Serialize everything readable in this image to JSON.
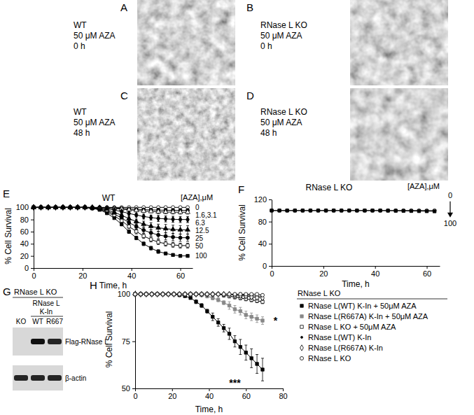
{
  "chart_data": [
    {
      "panel_label": "E",
      "type": "line",
      "title": "WT",
      "x_label": "Time, h",
      "y_label": "% Cell Survival",
      "x": [
        0,
        3,
        6,
        9,
        12,
        15,
        18,
        21,
        24,
        27,
        30,
        33,
        36,
        39,
        42,
        45,
        48,
        51,
        54,
        57,
        60,
        63
      ],
      "xlim": [
        0,
        65
      ],
      "xticks": [
        0,
        20,
        40,
        60
      ],
      "ylim": [
        0,
        105
      ],
      "yticks": [
        0,
        20,
        40,
        60,
        80,
        100
      ],
      "curve_labels_title": "[AZA],μM",
      "curve_labels": [
        {
          "text": "0",
          "series": [
            0
          ]
        },
        {
          "text": "1.6,3.1",
          "series": [
            1,
            2
          ]
        },
        {
          "text": "6.3",
          "series": [
            3
          ]
        },
        {
          "text": "12.5",
          "series": [
            4
          ]
        },
        {
          "text": "25",
          "series": [
            5
          ]
        },
        {
          "text": "50",
          "series": [
            6
          ]
        },
        {
          "text": "100",
          "series": [
            7
          ]
        }
      ],
      "series": [
        {
          "color": "#000000",
          "marker": "circle-open",
          "values": [
            100,
            100,
            100,
            100,
            100,
            100,
            100,
            100,
            100,
            100,
            100,
            100,
            100,
            100,
            100,
            100,
            100,
            100,
            100,
            100,
            100,
            100
          ],
          "errors": [
            0,
            0,
            0,
            0,
            0,
            0,
            0,
            0,
            0,
            0,
            0,
            0,
            0,
            0,
            0,
            0,
            0,
            0,
            0,
            0,
            1,
            1
          ]
        },
        {
          "color": "#000000",
          "marker": "circle",
          "values": [
            100,
            100,
            100,
            100,
            100,
            100,
            100,
            100,
            99.9,
            99.8,
            99.4,
            98.9,
            98.3,
            97.5,
            96.9,
            96.3,
            95.8,
            95.5,
            95.3,
            95.1,
            95,
            95
          ],
          "errors": [
            0,
            0,
            0,
            0,
            0,
            0,
            0,
            0,
            0,
            0,
            0,
            0,
            1,
            1,
            2,
            2,
            2,
            3,
            3,
            3,
            3,
            3
          ]
        },
        {
          "color": "#000000",
          "marker": "triangle-open",
          "values": [
            100,
            100,
            100,
            100,
            100,
            100,
            100,
            100,
            99.8,
            99.6,
            99,
            98.2,
            97.2,
            96,
            95,
            94,
            93.3,
            92.7,
            92.4,
            92.2,
            92,
            92
          ],
          "errors": [
            0,
            0,
            0,
            0,
            0,
            0,
            0,
            0,
            0,
            0,
            0,
            0,
            1,
            1,
            2,
            2,
            2,
            3,
            3,
            3,
            3,
            3
          ]
        },
        {
          "color": "#000000",
          "marker": "diamond",
          "values": [
            100,
            100,
            100,
            100,
            100,
            100,
            100,
            100,
            99.6,
            99,
            97.6,
            95.6,
            93,
            90,
            87.4,
            85,
            83.2,
            81.8,
            81,
            80.4,
            80,
            80
          ],
          "errors": [
            0,
            0,
            0,
            0,
            0,
            0,
            0,
            0,
            0,
            0,
            0,
            0,
            2,
            3,
            3,
            4,
            4,
            5,
            5,
            5,
            5,
            5
          ]
        },
        {
          "color": "#000000",
          "marker": "triangle",
          "values": [
            100,
            100,
            100,
            100,
            100,
            100,
            100,
            100,
            99.3,
            98.2,
            95.6,
            91.9,
            87,
            81.5,
            76.7,
            72.3,
            68.9,
            66.3,
            64.9,
            63.7,
            63,
            63
          ],
          "errors": [
            0,
            0,
            0,
            0,
            0,
            0,
            0,
            0,
            0,
            0,
            0,
            0,
            2,
            3,
            4,
            5,
            6,
            6,
            7,
            7,
            7,
            7
          ]
        },
        {
          "color": "#000000",
          "marker": "circle",
          "values": [
            100,
            100,
            100,
            100,
            100,
            100,
            100,
            100,
            99,
            97.5,
            94,
            89,
            82.5,
            75,
            68.5,
            62.5,
            58,
            54.5,
            52.5,
            51,
            50,
            50
          ],
          "errors": [
            0,
            0,
            0,
            0,
            0,
            0,
            0,
            0,
            0,
            0,
            0,
            0,
            2,
            3,
            4,
            5,
            5,
            6,
            6,
            6,
            6,
            6
          ]
        },
        {
          "color": "#000000",
          "marker": "square-open",
          "values": [
            100,
            100,
            100,
            100,
            100,
            100,
            100,
            100,
            98.7,
            96.9,
            92.4,
            86.1,
            78,
            68.5,
            60.3,
            52.8,
            47.1,
            42.7,
            40.2,
            38.3,
            37,
            37
          ],
          "errors": [
            0,
            0,
            0,
            0,
            0,
            0,
            0,
            0,
            0,
            0,
            0,
            0,
            2,
            3,
            4,
            4,
            4,
            4,
            4,
            4,
            4,
            4
          ]
        },
        {
          "color": "#000000",
          "marker": "square",
          "values": [
            100,
            100,
            100,
            100,
            100,
            100,
            100,
            100,
            98.4,
            96,
            90.4,
            82.4,
            72,
            60,
            49.6,
            40,
            32.8,
            27.2,
            24,
            21.6,
            20,
            20
          ],
          "errors": [
            0,
            0,
            0,
            0,
            0,
            0,
            0,
            0,
            0,
            0,
            0,
            0,
            2,
            3,
            3,
            3,
            3,
            3,
            2,
            2,
            2,
            2
          ]
        }
      ]
    },
    {
      "panel_label": "F",
      "type": "line",
      "title": "RNase L KO",
      "x_label": "Time, h",
      "y_label": "% Cell Survival",
      "x": [
        0,
        3,
        6,
        9,
        12,
        15,
        18,
        21,
        24,
        27,
        30,
        33,
        36,
        39,
        42,
        45,
        48,
        51,
        54,
        57,
        60,
        63
      ],
      "xlim": [
        0,
        65
      ],
      "xticks": [
        0,
        20,
        40,
        60
      ],
      "ylim": [
        0,
        120
      ],
      "yticks": [
        0,
        40,
        80,
        120
      ],
      "curve_labels_title": "[AZA],μM",
      "curve_labels": [
        {
          "text": "0",
          "series": [
            0
          ]
        },
        {
          "text": "100",
          "series": [
            1
          ]
        }
      ],
      "series": [
        {
          "color": "#000000",
          "marker": "circle-open",
          "values": [
            100,
            100,
            100,
            100,
            100,
            100,
            100,
            100,
            100,
            100,
            100,
            100,
            100,
            100,
            100,
            100,
            100,
            100,
            100,
            100,
            100,
            100
          ]
        },
        {
          "color": "#000000",
          "marker": "square",
          "values": [
            100,
            100,
            100,
            100,
            100,
            100,
            100,
            100,
            100,
            100,
            100,
            100,
            100,
            100,
            100,
            99.8,
            99.6,
            99.4,
            99.2,
            99,
            98.8,
            98.6
          ]
        }
      ]
    },
    {
      "panel_label": "H",
      "type": "line",
      "x_label": "Time, h",
      "y_label": "% Cell Survival",
      "x": [
        0,
        3,
        6,
        9,
        12,
        15,
        18,
        21,
        24,
        27,
        30,
        33,
        36,
        39,
        42,
        45,
        48,
        51,
        54,
        57,
        60,
        63,
        66,
        69
      ],
      "xlim": [
        0,
        80
      ],
      "xticks": [
        0,
        20,
        40,
        60,
        80
      ],
      "ylim": [
        50,
        102
      ],
      "yticks": [
        50,
        75,
        100
      ],
      "legend": "right",
      "legend_title": "RNase L KO",
      "annotations": [
        {
          "text": "*",
          "x": 76,
          "y": 86
        },
        {
          "text": "***",
          "x": 54,
          "y": 53
        }
      ],
      "series": [
        {
          "name": "RNase L(WT) K-In + 50μM AZA",
          "color": "#000000",
          "marker": "square",
          "values": [
            100,
            100,
            100,
            100,
            100,
            100,
            100,
            100,
            99.5,
            99,
            98,
            96,
            94,
            91,
            88,
            85,
            82,
            79,
            75,
            72,
            69,
            66,
            63,
            60
          ],
          "errors": [
            0,
            0,
            0,
            0,
            0,
            0,
            0,
            0,
            0,
            0,
            0,
            1,
            1,
            1,
            2,
            2,
            2,
            3,
            3,
            4,
            4,
            5,
            5,
            6
          ]
        },
        {
          "name": "RNase L(R667A) K-In + 50μM AZA",
          "color": "#888888",
          "marker": "square",
          "values": [
            100,
            100,
            100,
            100,
            100,
            100,
            100,
            100,
            100,
            100,
            100,
            100,
            99.5,
            99,
            98,
            97,
            95.5,
            94,
            92,
            91,
            89,
            88,
            87,
            86
          ],
          "errors": [
            0,
            0,
            0,
            0,
            0,
            0,
            0,
            0,
            0,
            0,
            0,
            0,
            0,
            1,
            1,
            1,
            1,
            2,
            2,
            2,
            2,
            2,
            2,
            2
          ]
        },
        {
          "name": "RNase L KO + 50μM AZA",
          "color": "#000000",
          "marker": "square-open",
          "values": [
            100,
            100,
            100,
            100,
            100,
            100,
            100,
            100,
            100,
            100,
            100,
            100,
            100,
            100,
            100,
            100,
            99.5,
            99,
            98.5,
            98,
            97.5,
            97,
            96.5,
            96
          ],
          "errors": [
            0,
            0,
            0,
            0,
            0,
            0,
            0,
            0,
            0,
            0,
            0,
            0,
            0,
            0,
            0,
            0,
            1,
            1,
            1,
            1,
            1,
            1,
            1,
            1
          ]
        },
        {
          "name": "RNase L(WT) K-In",
          "color": "#000000",
          "marker": "dot",
          "values": [
            100,
            100,
            100,
            100,
            100,
            100,
            100,
            100,
            100,
            100,
            100,
            100,
            100,
            100,
            100,
            100,
            100,
            100,
            100,
            99.8,
            99.5,
            99.2,
            99,
            98.8
          ],
          "errors": [
            0,
            0,
            0,
            0,
            0,
            0,
            0,
            0,
            0,
            0,
            0,
            0,
            0,
            0,
            0,
            0,
            0,
            0,
            0,
            1,
            1,
            1,
            1,
            1
          ]
        },
        {
          "name": "RNase L(R667A) K-In",
          "color": "#000000",
          "marker": "diamond-open",
          "values": [
            100,
            100,
            100,
            100,
            100,
            100,
            100,
            100,
            100,
            100,
            100,
            100,
            100,
            100,
            100,
            100,
            100,
            100,
            99.5,
            99.2,
            99,
            98.5,
            98.2,
            98
          ],
          "errors": [
            0,
            0,
            0,
            0,
            0,
            0,
            0,
            0,
            0,
            0,
            0,
            0,
            0,
            0,
            0,
            0,
            0,
            0,
            1,
            1,
            1,
            1,
            1,
            1
          ]
        },
        {
          "name": "RNase L KO",
          "color": "#000000",
          "marker": "circle-open",
          "values": [
            100,
            100,
            100,
            100,
            100,
            100,
            100,
            100,
            100,
            100,
            100,
            100,
            100,
            100,
            100,
            100,
            100,
            100,
            100,
            100,
            100,
            100,
            100,
            99.5
          ]
        }
      ]
    }
  ],
  "images": [
    {
      "panel_label": "A",
      "lines": [
        "WT",
        "50 μM AZA",
        "0 h"
      ]
    },
    {
      "panel_label": "B",
      "lines": [
        "RNase L KO",
        "50 μM AZA",
        "0 h"
      ]
    },
    {
      "panel_label": "C",
      "lines": [
        "WT",
        "50 μM AZA",
        "48 h"
      ]
    },
    {
      "panel_label": "D",
      "lines": [
        "RNase L KO",
        "50 μM AZA",
        "48 h"
      ]
    }
  ],
  "blot": {
    "panel_label": "G",
    "title": "RNase L KO",
    "subtitle": [
      "RNase L",
      "K-In"
    ],
    "lanes": [
      "KO",
      "WT",
      "R667"
    ],
    "bands": [
      {
        "name": "Flag-RNase L",
        "intensity": [
          0,
          1,
          0.9
        ]
      },
      {
        "name": "β-actin",
        "intensity": [
          0.9,
          0.9,
          0.9
        ]
      }
    ]
  }
}
